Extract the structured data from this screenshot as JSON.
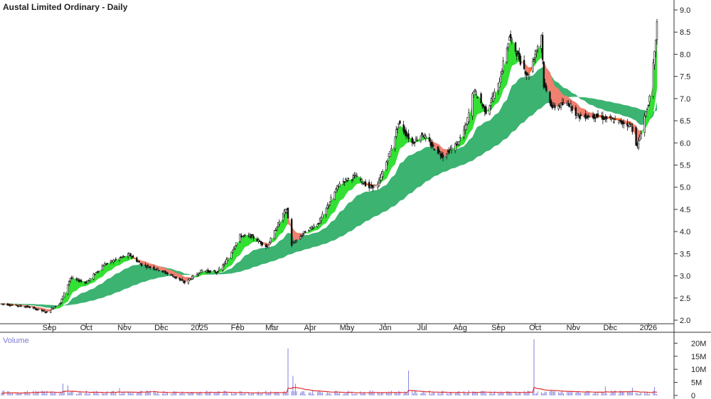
{
  "chart_data": {
    "type": "candlestick",
    "title": "Austal Limited Ordinary - Daily",
    "price_axis": {
      "ticks": [
        "2.0",
        "2.5",
        "3.0",
        "3.5",
        "4.0",
        "4.5",
        "5.0",
        "5.5",
        "6.0",
        "6.5",
        "7.0",
        "7.5",
        "8.0",
        "8.5",
        "9.0"
      ],
      "ylim": [
        1.9,
        9.15
      ]
    },
    "months": [
      {
        "label": "Sep",
        "date": "2024-09-01"
      },
      {
        "label": "Oct",
        "date": "2024-10-01"
      },
      {
        "label": "Nov",
        "date": "2024-11-01"
      },
      {
        "label": "Dec",
        "date": "2024-12-01"
      },
      {
        "label": "2025",
        "date": "2025-01-01"
      },
      {
        "label": "Feb",
        "date": "2025-02-01"
      },
      {
        "label": "Mar",
        "date": "2025-03-01"
      },
      {
        "label": "Apr",
        "date": "2025-04-01"
      },
      {
        "label": "May",
        "date": "2025-05-01"
      },
      {
        "label": "Jun",
        "date": "2025-06-01"
      },
      {
        "label": "Jul",
        "date": "2025-07-01"
      },
      {
        "label": "Aug",
        "date": "2025-08-01"
      },
      {
        "label": "Sep",
        "date": "2025-09-01"
      },
      {
        "label": "Oct",
        "date": "2025-10-01"
      },
      {
        "label": "Nov",
        "date": "2025-11-01"
      },
      {
        "label": "Dec",
        "date": "2025-12-01"
      },
      {
        "label": "2026",
        "date": "2026-01-01"
      }
    ],
    "date_range": [
      "2024-07-24",
      "2026-01-08"
    ],
    "price_anchors": [
      [
        "2024-07-24",
        2.37
      ],
      [
        "2024-08-15",
        2.3
      ],
      [
        "2024-08-30",
        2.18
      ],
      [
        "2024-09-10",
        2.4
      ],
      [
        "2024-09-18",
        2.95
      ],
      [
        "2024-10-01",
        2.85
      ],
      [
        "2024-10-15",
        3.25
      ],
      [
        "2024-10-28",
        3.4
      ],
      [
        "2024-11-05",
        3.48
      ],
      [
        "2024-11-15",
        3.25
      ],
      [
        "2024-11-28",
        3.15
      ],
      [
        "2024-12-10",
        3.0
      ],
      [
        "2024-12-20",
        2.85
      ],
      [
        "2025-01-03",
        3.12
      ],
      [
        "2025-01-15",
        3.08
      ],
      [
        "2025-01-22",
        3.3
      ],
      [
        "2025-02-03",
        3.9
      ],
      [
        "2025-02-12",
        3.9
      ],
      [
        "2025-02-25",
        3.65
      ],
      [
        "2025-03-10",
        4.4
      ],
      [
        "2025-03-13",
        4.5
      ],
      [
        "2025-03-17",
        3.7
      ],
      [
        "2025-03-28",
        4.0
      ],
      [
        "2025-04-08",
        4.2
      ],
      [
        "2025-04-25",
        5.1
      ],
      [
        "2025-05-08",
        5.25
      ],
      [
        "2025-05-19",
        5.0
      ],
      [
        "2025-05-26",
        5.05
      ],
      [
        "2025-06-05",
        5.8
      ],
      [
        "2025-06-12",
        6.45
      ],
      [
        "2025-06-23",
        6.0
      ],
      [
        "2025-07-01",
        6.2
      ],
      [
        "2025-07-10",
        5.9
      ],
      [
        "2025-07-18",
        5.7
      ],
      [
        "2025-07-30",
        6.0
      ],
      [
        "2025-08-06",
        6.4
      ],
      [
        "2025-08-12",
        7.2
      ],
      [
        "2025-08-22",
        6.7
      ],
      [
        "2025-09-01",
        7.3
      ],
      [
        "2025-09-10",
        8.4
      ],
      [
        "2025-09-18",
        7.9
      ],
      [
        "2025-09-25",
        7.5
      ],
      [
        "2025-10-06",
        8.45
      ],
      [
        "2025-10-08",
        7.3
      ],
      [
        "2025-10-15",
        6.8
      ],
      [
        "2025-10-28",
        6.9
      ],
      [
        "2025-11-05",
        6.6
      ],
      [
        "2025-11-20",
        6.6
      ],
      [
        "2025-12-05",
        6.5
      ],
      [
        "2025-12-18",
        6.4
      ],
      [
        "2025-12-23",
        5.9
      ],
      [
        "2025-12-29",
        6.6
      ],
      [
        "2026-01-02",
        7.0
      ],
      [
        "2026-01-06",
        8.0
      ],
      [
        "2026-01-08",
        8.7
      ]
    ],
    "indicators": {
      "short_ma": "green/red ribbon",
      "long_ma": "green ribbon"
    },
    "volume": {
      "title": "Volume",
      "ticks": [
        "0",
        "5M",
        "10M",
        "15M",
        "20M"
      ],
      "ylim": [
        0,
        22000000
      ],
      "baseline_millions": 1.2,
      "spikes": [
        [
          "2024-09-12",
          4.5
        ],
        [
          "2024-09-16",
          3.8
        ],
        [
          "2024-10-28",
          2.8
        ],
        [
          "2025-03-14",
          18.0
        ],
        [
          "2025-03-18",
          7.5
        ],
        [
          "2025-03-20",
          4.5
        ],
        [
          "2025-06-20",
          9.5
        ],
        [
          "2025-09-30",
          21.5
        ],
        [
          "2025-11-27",
          3.5
        ],
        [
          "2025-12-19",
          3.0
        ],
        [
          "2026-01-06",
          3.2
        ]
      ]
    }
  }
}
